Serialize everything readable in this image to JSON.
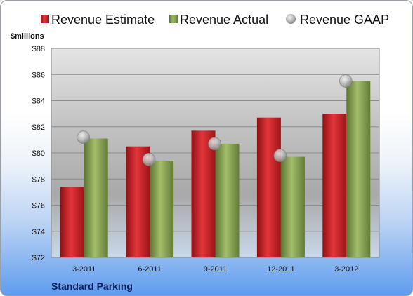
{
  "chart_data": {
    "type": "bar",
    "categories": [
      "3-2011",
      "6-2011",
      "9-2011",
      "12-2011",
      "3-2012"
    ],
    "series": [
      {
        "name": "Revenue Estimate",
        "kind": "bar",
        "color": "#d0282e",
        "values": [
          77.4,
          80.5,
          81.7,
          82.7,
          83.0
        ]
      },
      {
        "name": "Revenue Actual",
        "kind": "bar",
        "color": "#86a152",
        "values": [
          81.1,
          79.4,
          80.7,
          79.7,
          85.5
        ]
      },
      {
        "name": "Revenue GAAP",
        "kind": "marker",
        "color": "#b5b5b5",
        "values": [
          81.2,
          79.5,
          80.7,
          79.8,
          85.5
        ]
      }
    ],
    "ylabel": "$millions",
    "ylim": [
      72,
      88
    ],
    "yticks": [
      72,
      74,
      76,
      78,
      80,
      82,
      84,
      86,
      88
    ],
    "ytick_labels": [
      "$72",
      "$74",
      "$76",
      "$78",
      "$80",
      "$82",
      "$84",
      "$86",
      "$88"
    ],
    "grid": true,
    "legend_position": "top",
    "company": "Standard Parking"
  }
}
